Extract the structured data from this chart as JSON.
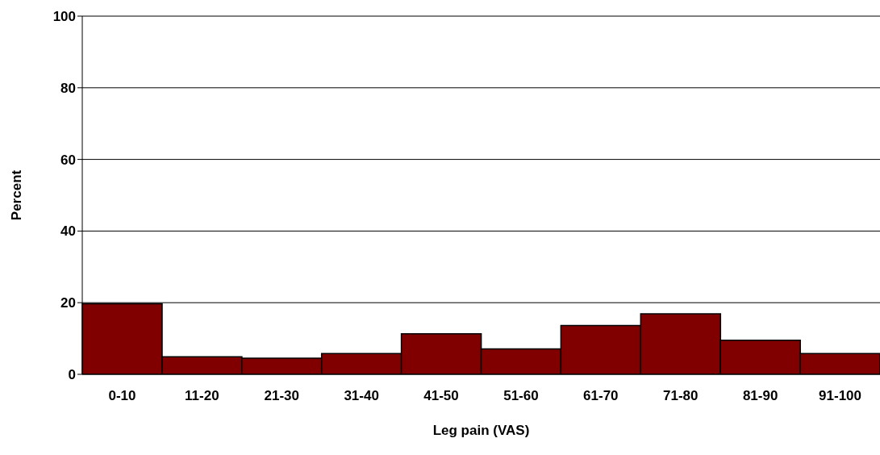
{
  "chart_data": {
    "type": "bar",
    "xlabel": "Leg pain (VAS)",
    "ylabel": "Percent",
    "categories": [
      "0-10",
      "11-20",
      "21-30",
      "31-40",
      "41-50",
      "51-60",
      "61-70",
      "71-80",
      "81-90",
      "91-100"
    ],
    "values": [
      19.7,
      4.9,
      4.5,
      5.8,
      11.3,
      7.1,
      13.6,
      16.9,
      9.5,
      5.8
    ],
    "color": "#800000",
    "ylim": [
      0,
      100
    ],
    "yticks": [
      0,
      20,
      40,
      60,
      80,
      100
    ],
    "grid": "y"
  }
}
